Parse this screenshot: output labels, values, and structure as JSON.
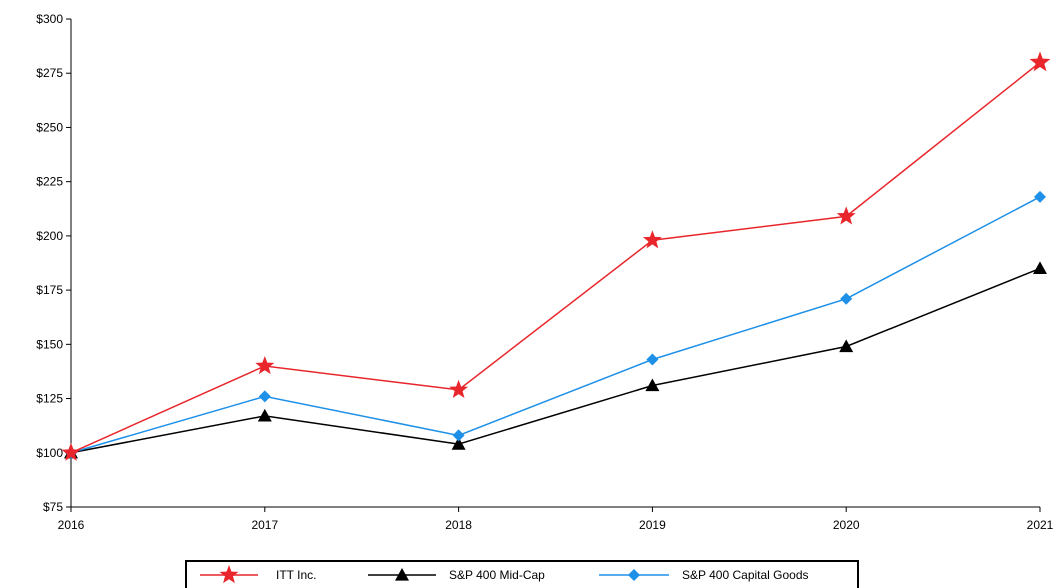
{
  "chart_data": {
    "type": "line",
    "x": [
      "2016",
      "2017",
      "2018",
      "2019",
      "2020",
      "2021"
    ],
    "ylim": [
      75,
      300
    ],
    "y_ticks": [
      75,
      100,
      125,
      150,
      175,
      200,
      225,
      250,
      275,
      300
    ],
    "y_tick_format": "$",
    "grid": false,
    "legend_position": "bottom",
    "series": [
      {
        "name": "ITT Inc.",
        "values": [
          100,
          140,
          129,
          198,
          209,
          280
        ],
        "color": "#e8262b",
        "marker": "star"
      },
      {
        "name": "S&P 400 Mid-Cap",
        "values": [
          100,
          117,
          104,
          131,
          149,
          185
        ],
        "color": "#000000",
        "marker": "triangle"
      },
      {
        "name": "S&P 400 Capital Goods",
        "values": [
          100,
          126,
          108,
          143,
          171,
          218
        ],
        "color": "#1e90e8",
        "marker": "diamond"
      }
    ]
  }
}
